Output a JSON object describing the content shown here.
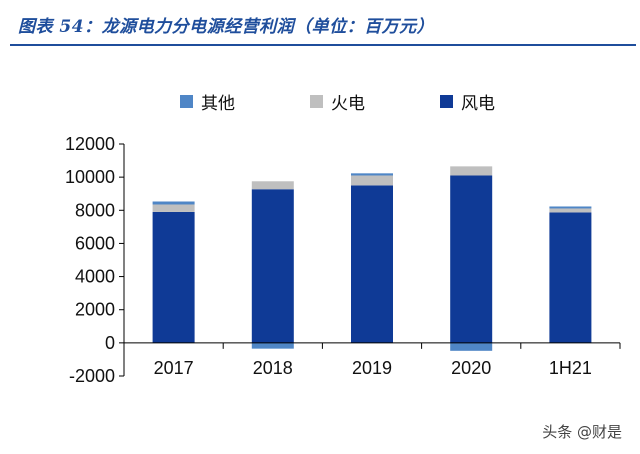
{
  "header": {
    "title": "图表 54：龙源电力分电源经营利润（单位：百万元）"
  },
  "watermark": "头条 @财是",
  "colors": {
    "title": "#1f4e9c",
    "wind": "#0f3a96",
    "thermal": "#bfbfbf",
    "other": "#4f86c6"
  },
  "chart_data": {
    "type": "bar",
    "stacked": true,
    "categories": [
      "2017",
      "2018",
      "2019",
      "2020",
      "1H21"
    ],
    "series": [
      {
        "name": "其他",
        "color": "#4f86c6",
        "values": [
          180,
          -350,
          130,
          -480,
          120
        ]
      },
      {
        "name": "火电",
        "color": "#bfbfbf",
        "values": [
          450,
          480,
          600,
          550,
          240
        ]
      },
      {
        "name": "风电",
        "color": "#0f3a96",
        "values": [
          7900,
          9270,
          9500,
          10100,
          7870
        ]
      }
    ],
    "legend_order": [
      "其他",
      "火电",
      "风电"
    ],
    "legend_position": "top",
    "ylim": [
      -2000,
      12000
    ],
    "yticks": [
      -2000,
      0,
      2000,
      4000,
      6000,
      8000,
      10000,
      12000
    ],
    "grid": false,
    "xlabel": "",
    "ylabel": ""
  }
}
